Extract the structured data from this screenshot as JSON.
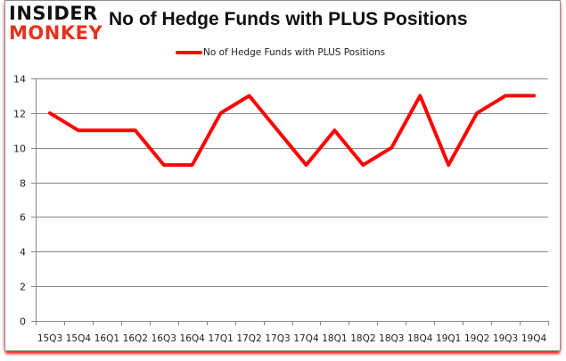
{
  "logo": {
    "line1": "INSIDER",
    "line2": "MONKEY"
  },
  "header": {
    "title": "No of Hedge Funds with PLUS Positions"
  },
  "legend": {
    "label": "No of Hedge Funds with PLUS Positions",
    "color": "#ff0000"
  },
  "colors": {
    "line": "#ff0000",
    "grid": "#888888",
    "frame_shadow": "#ff1a1a",
    "logo_red": "#e8311f"
  },
  "chart_data": {
    "type": "line",
    "title": "No of Hedge Funds with PLUS Positions",
    "xlabel": "",
    "ylabel": "",
    "ylim": [
      0,
      14
    ],
    "yticks": [
      0,
      2,
      4,
      6,
      8,
      10,
      12,
      14
    ],
    "grid": true,
    "legend_position": "top",
    "categories": [
      "15Q3",
      "15Q4",
      "16Q1",
      "16Q2",
      "16Q3",
      "16Q4",
      "17Q1",
      "17Q2",
      "17Q3",
      "17Q4",
      "18Q1",
      "18Q2",
      "18Q3",
      "18Q4",
      "19Q1",
      "19Q2",
      "19Q3",
      "19Q4"
    ],
    "series": [
      {
        "name": "No of Hedge Funds with PLUS Positions",
        "values": [
          12,
          11,
          11,
          11,
          9,
          9,
          12,
          13,
          11,
          9,
          11,
          9,
          10,
          13,
          9,
          12,
          13,
          13
        ]
      }
    ]
  }
}
